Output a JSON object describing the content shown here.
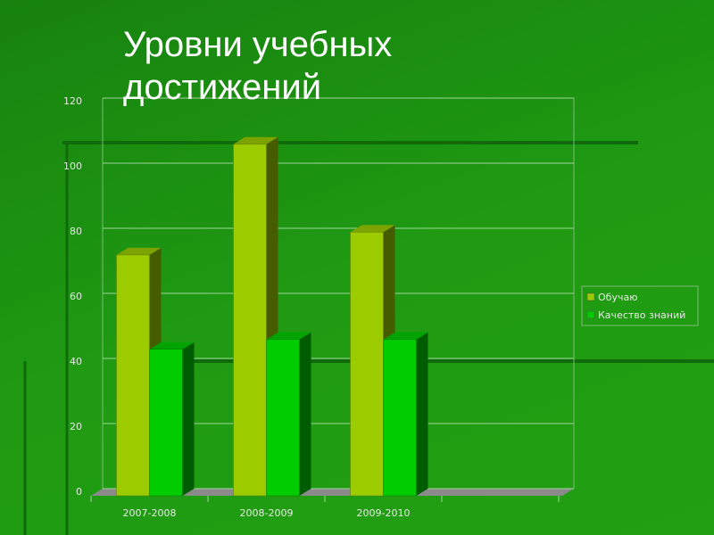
{
  "chart_data": {
    "type": "bar",
    "title": "Уровни учебных достижений",
    "categories": [
      "2007-2008",
      "2008-2009",
      "2009-2010"
    ],
    "series": [
      {
        "name": "Обучаю",
        "color": "#9ccc00",
        "values": [
          74,
          108,
          81
        ]
      },
      {
        "name": "Качество знаний",
        "color": "#00cc00",
        "values": [
          45,
          48,
          48
        ]
      }
    ],
    "ylim": [
      0,
      120
    ],
    "yticks": [
      0,
      20,
      40,
      60,
      80,
      100,
      120
    ],
    "grid": true
  }
}
